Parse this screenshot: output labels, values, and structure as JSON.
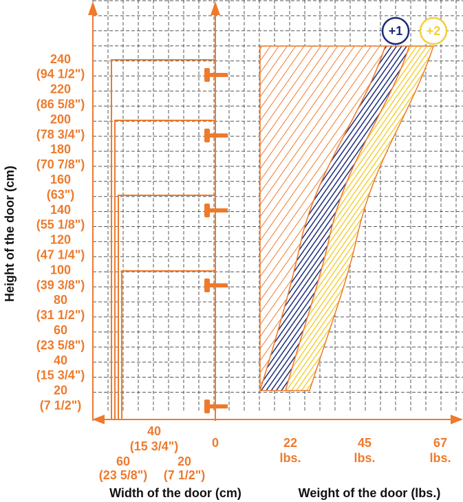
{
  "y_axis": {
    "title": "Height of the door (cm)",
    "labels": [
      "240",
      "(94 1/2\")",
      "220",
      "(86 5/8\")",
      "200",
      "(78 3/4\")",
      "180",
      "(70 7/8\")",
      "160",
      "(63\")",
      "140",
      "(55 1/8\")",
      "120",
      "(47 1/4\")",
      "100",
      "(39 3/8\")",
      "80",
      "(31 1/2\")",
      "60",
      "(23 5/8\")",
      "40",
      "(15 3/4\")",
      "20",
      "(7 1/2\")"
    ]
  },
  "width_axis": {
    "title": "Width of the door (cm)",
    "labels": [
      {
        "cm": "0",
        "inch": null
      },
      {
        "cm": "20",
        "inch": "(7 1/2\")"
      },
      {
        "cm": "40",
        "inch": "(15 3/4\")"
      },
      {
        "cm": "60",
        "inch": "(23 5/8\")"
      }
    ]
  },
  "weight_axis": {
    "title": "Weight of the door (lbs.)",
    "labels": [
      {
        "value": "22",
        "unit": "lbs."
      },
      {
        "value": "45",
        "unit": "lbs."
      },
      {
        "value": "67",
        "unit": "lbs."
      }
    ]
  },
  "legend": [
    "+1",
    "+2"
  ]
}
